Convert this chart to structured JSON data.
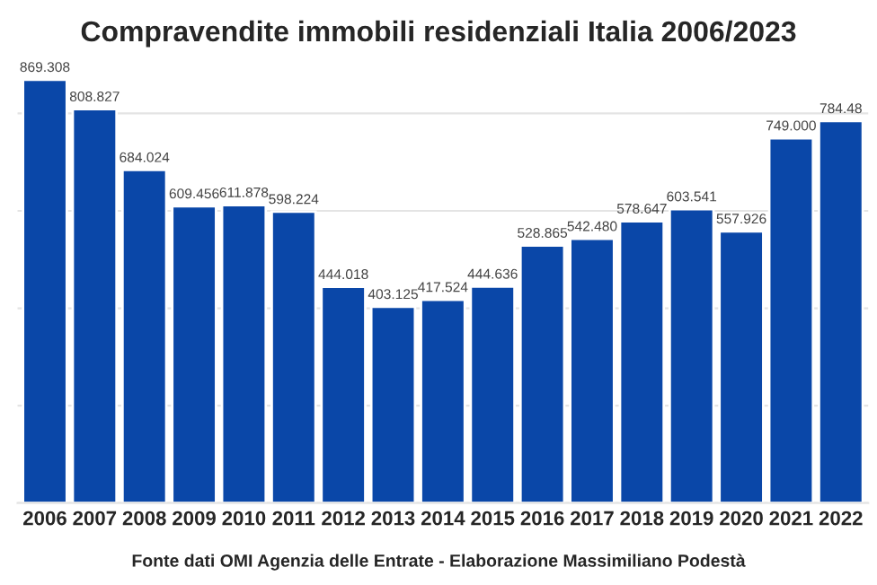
{
  "chart_data": {
    "type": "bar",
    "title": "Compravendite immobili residenziali Italia 2006/2023",
    "categories": [
      "2006",
      "2007",
      "2008",
      "2009",
      "2010",
      "2011",
      "2012",
      "2013",
      "2014",
      "2015",
      "2016",
      "2017",
      "2018",
      "2019",
      "2020",
      "2021",
      "2022"
    ],
    "values": [
      869.308,
      808.827,
      684.024,
      609.456,
      611.878,
      598.224,
      444.018,
      403.125,
      417.524,
      444.636,
      528.865,
      542.48,
      578.647,
      603.541,
      557.926,
      749.0,
      784.48
    ],
    "value_labels": [
      "869.308",
      "808.827",
      "684.024",
      "609.456",
      "611.878",
      "598.224",
      "444.018",
      "403.125",
      "417.524",
      "444.636",
      "528.865",
      "542.480",
      "578.647",
      "603.541",
      "557.926",
      "749.000",
      "784.48"
    ],
    "color": "#0a47a8",
    "tick_labels": "x",
    "grid": "y",
    "annotations": [
      "Fonte dati OMI Agenzia delle Entrate - Elaborazione Massimiliano Podestà"
    ]
  }
}
